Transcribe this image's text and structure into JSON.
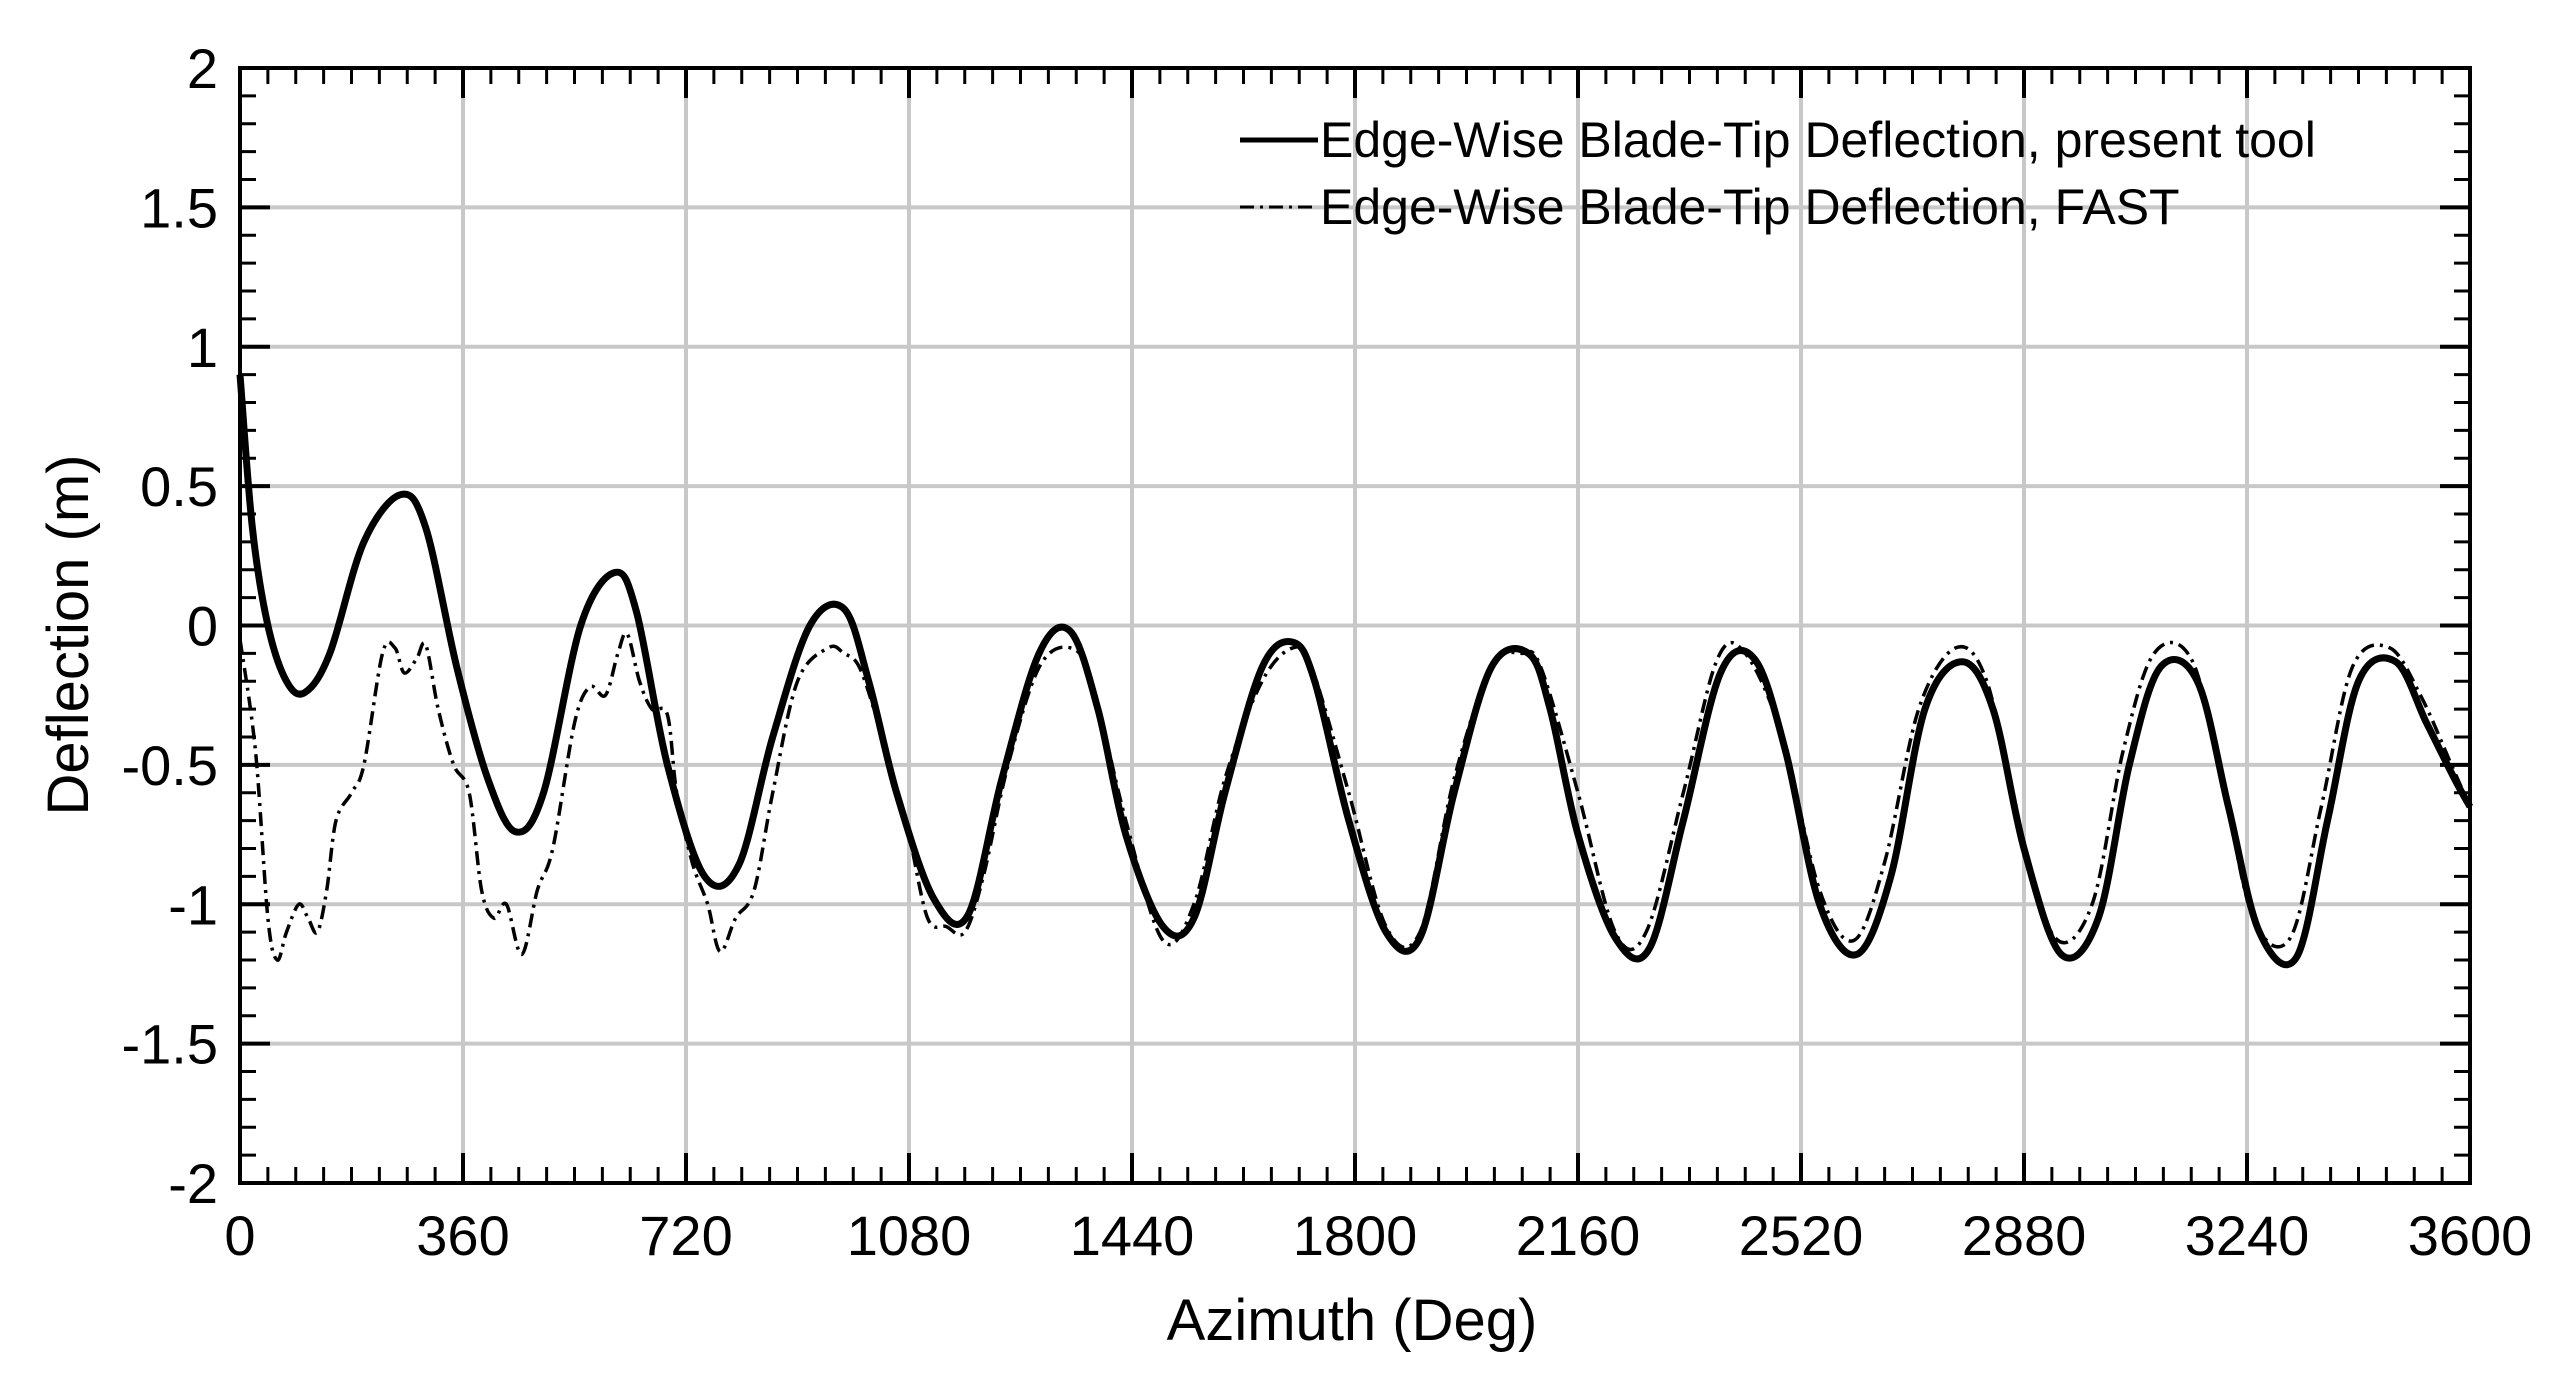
{
  "chart_data": {
    "type": "line",
    "title": "",
    "xlabel": "Azimuth (Deg)",
    "ylabel": "Deflection (m)",
    "xlim": [
      0,
      3600
    ],
    "ylim": [
      -2,
      2
    ],
    "xticks": [
      "0",
      "360",
      "720",
      "1080",
      "1440",
      "1800",
      "2160",
      "2520",
      "2880",
      "3240",
      "3600"
    ],
    "yticks": [
      "2",
      "1.5",
      "1",
      "0.5",
      "0",
      "-0.5",
      "-1",
      "-1.5",
      "-2"
    ],
    "grid": true,
    "legend_position": "top-right",
    "series": [
      {
        "name": "Edge-Wise Blade-Tip Deflection, present tool",
        "style": "solid",
        "color": "#000000",
        "x": [
          0,
          20,
          45,
          75,
          105,
          145,
          200,
          260,
          300,
          350,
          400,
          445,
          490,
          550,
          605,
          640,
          690,
          750,
          805,
          860,
          920,
          975,
          1015,
          1060,
          1120,
          1175,
          1230,
          1290,
          1340,
          1385,
          1430,
          1490,
          1540,
          1590,
          1650,
          1700,
          1735,
          1790,
          1850,
          1905,
          1960,
          2020,
          2080,
          2115,
          2160,
          2220,
          2275,
          2330,
          2390,
          2445,
          2495,
          2550,
          2610,
          2665,
          2720,
          2780,
          2830,
          2880,
          2940,
          3000,
          3050,
          3100,
          3160,
          3210,
          3260,
          3320,
          3370,
          3420,
          3480,
          3530,
          3575,
          3600
        ],
        "y": [
          0.9,
          0.35,
          0.0,
          -0.2,
          -0.24,
          -0.1,
          0.3,
          0.47,
          0.35,
          -0.15,
          -0.55,
          -0.74,
          -0.6,
          0.0,
          0.19,
          0.05,
          -0.5,
          -0.9,
          -0.86,
          -0.4,
          0.0,
          0.06,
          -0.2,
          -0.6,
          -0.98,
          -1.04,
          -0.55,
          -0.1,
          -0.02,
          -0.3,
          -0.75,
          -1.08,
          -1.05,
          -0.6,
          -0.15,
          -0.06,
          -0.2,
          -0.7,
          -1.1,
          -1.12,
          -0.6,
          -0.15,
          -0.1,
          -0.3,
          -0.75,
          -1.12,
          -1.16,
          -0.7,
          -0.17,
          -0.12,
          -0.45,
          -1.0,
          -1.18,
          -0.9,
          -0.3,
          -0.13,
          -0.3,
          -0.8,
          -1.18,
          -1.05,
          -0.5,
          -0.15,
          -0.2,
          -0.65,
          -1.1,
          -1.19,
          -0.7,
          -0.2,
          -0.13,
          -0.35,
          -0.55,
          -0.65
        ]
      },
      {
        "name": "Edge-Wise Blade-Tip Deflection, FAST",
        "style": "dash-dot",
        "color": "#000000",
        "x": [
          0,
          25,
          45,
          60,
          75,
          95,
          110,
          125,
          140,
          155,
          180,
          200,
          230,
          250,
          265,
          285,
          300,
          320,
          345,
          370,
          390,
          410,
          430,
          455,
          480,
          505,
          540,
          565,
          590,
          610,
          625,
          645,
          665,
          690,
          705,
          730,
          755,
          775,
          800,
          830,
          860,
          900,
          950,
          975,
          1000,
          1030,
          1060,
          1080,
          1110,
          1140,
          1170,
          1200,
          1240,
          1290,
          1340,
          1375,
          1430,
          1490,
          1540,
          1590,
          1650,
          1700,
          1730,
          1790,
          1850,
          1905,
          1960,
          2020,
          2070,
          2100,
          2160,
          2220,
          2270,
          2330,
          2385,
          2430,
          2490,
          2550,
          2605,
          2655,
          2710,
          2770,
          2820,
          2870,
          2930,
          2990,
          3040,
          3090,
          3150,
          3200,
          3250,
          3310,
          3360,
          3410,
          3470,
          3520,
          3570,
          3600
        ],
        "y": [
          -0.05,
          -0.45,
          -1.05,
          -1.2,
          -1.1,
          -1.0,
          -1.05,
          -1.1,
          -0.95,
          -0.7,
          -0.6,
          -0.5,
          -0.1,
          -0.08,
          -0.17,
          -0.12,
          -0.07,
          -0.3,
          -0.5,
          -0.6,
          -0.95,
          -1.05,
          -1.0,
          -1.18,
          -0.95,
          -0.8,
          -0.35,
          -0.22,
          -0.25,
          -0.1,
          -0.03,
          -0.2,
          -0.3,
          -0.32,
          -0.6,
          -0.85,
          -1.0,
          -1.17,
          -1.05,
          -0.95,
          -0.6,
          -0.2,
          -0.08,
          -0.1,
          -0.15,
          -0.35,
          -0.6,
          -0.75,
          -1.05,
          -1.08,
          -1.1,
          -0.9,
          -0.5,
          -0.15,
          -0.08,
          -0.2,
          -0.7,
          -1.13,
          -1.0,
          -0.55,
          -0.2,
          -0.08,
          -0.15,
          -0.6,
          -1.08,
          -1.1,
          -0.55,
          -0.15,
          -0.1,
          -0.15,
          -0.6,
          -1.1,
          -1.1,
          -0.6,
          -0.12,
          -0.1,
          -0.4,
          -0.95,
          -1.13,
          -0.85,
          -0.3,
          -0.08,
          -0.2,
          -0.7,
          -1.12,
          -1.0,
          -0.45,
          -0.1,
          -0.12,
          -0.55,
          -1.05,
          -1.12,
          -0.65,
          -0.15,
          -0.08,
          -0.25,
          -0.5,
          -0.65
        ]
      }
    ]
  }
}
